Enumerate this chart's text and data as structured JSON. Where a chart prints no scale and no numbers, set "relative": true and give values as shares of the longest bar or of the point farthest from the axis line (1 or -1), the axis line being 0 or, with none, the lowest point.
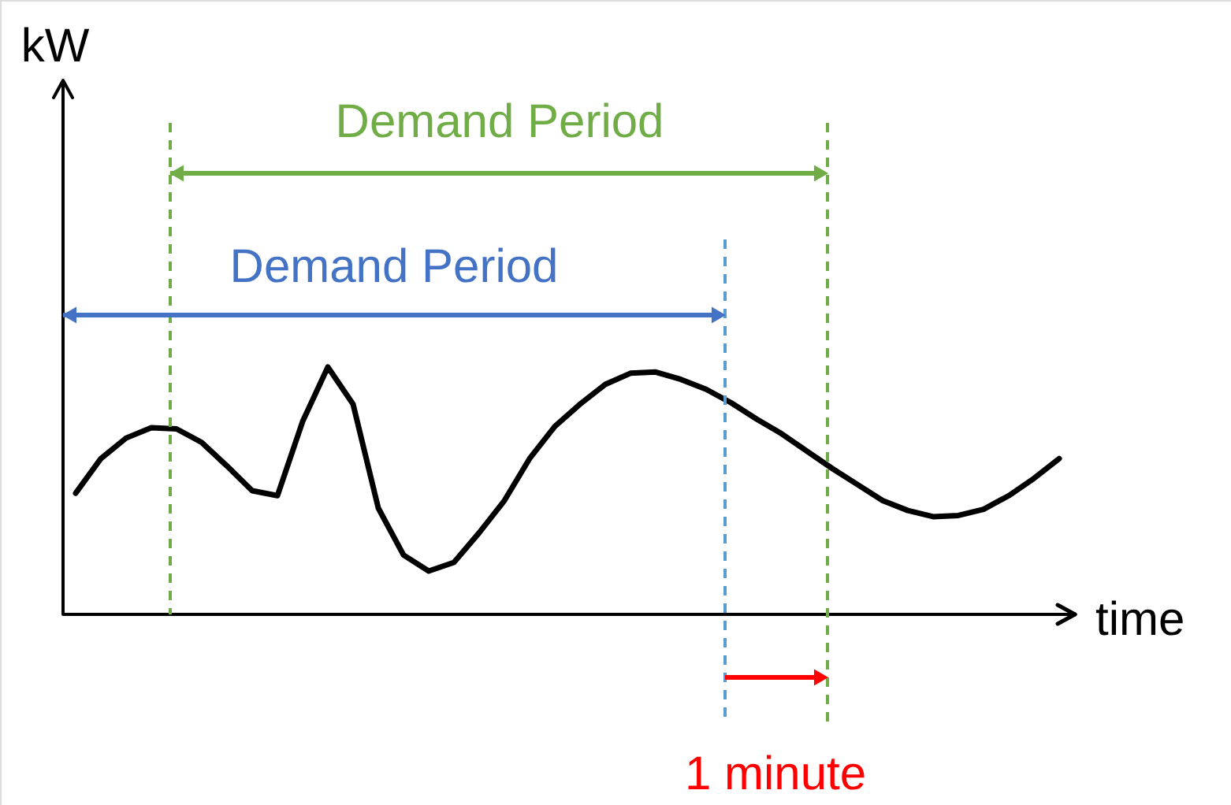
{
  "chart_data": {
    "type": "line",
    "relative": true,
    "xlabel": "time",
    "grid": false,
    "marker": "none",
    "line_style": "solid",
    "categories": [
      null,
      null,
      null,
      null,
      null,
      null,
      null,
      null,
      null,
      null,
      null,
      null,
      null,
      null,
      null,
      null,
      null,
      null,
      null,
      null,
      null,
      null,
      null,
      null,
      null,
      null,
      null,
      null,
      null,
      null,
      null,
      null,
      null,
      null,
      null,
      null,
      null,
      null,
      null,
      null
    ],
    "series": [
      {
        "color": "#000000",
        "values": [
          0.49,
          0.63,
          0.713,
          0.755,
          0.75,
          0.695,
          0.6,
          0.5,
          0.48,
          0.78,
          1.0,
          0.85,
          0.43,
          0.24,
          0.175,
          0.21,
          0.33,
          0.46,
          0.63,
          0.76,
          0.85,
          0.93,
          0.975,
          0.98,
          0.95,
          0.91,
          0.855,
          0.79,
          0.73,
          0.66,
          0.59,
          0.525,
          0.46,
          0.42,
          0.395,
          0.4,
          0.425,
          0.48,
          0.55,
          0.63
        ]
      }
    ],
    "annotations": [
      "kW",
      "Demand Period",
      "Demand Period",
      "1 minute"
    ]
  }
}
